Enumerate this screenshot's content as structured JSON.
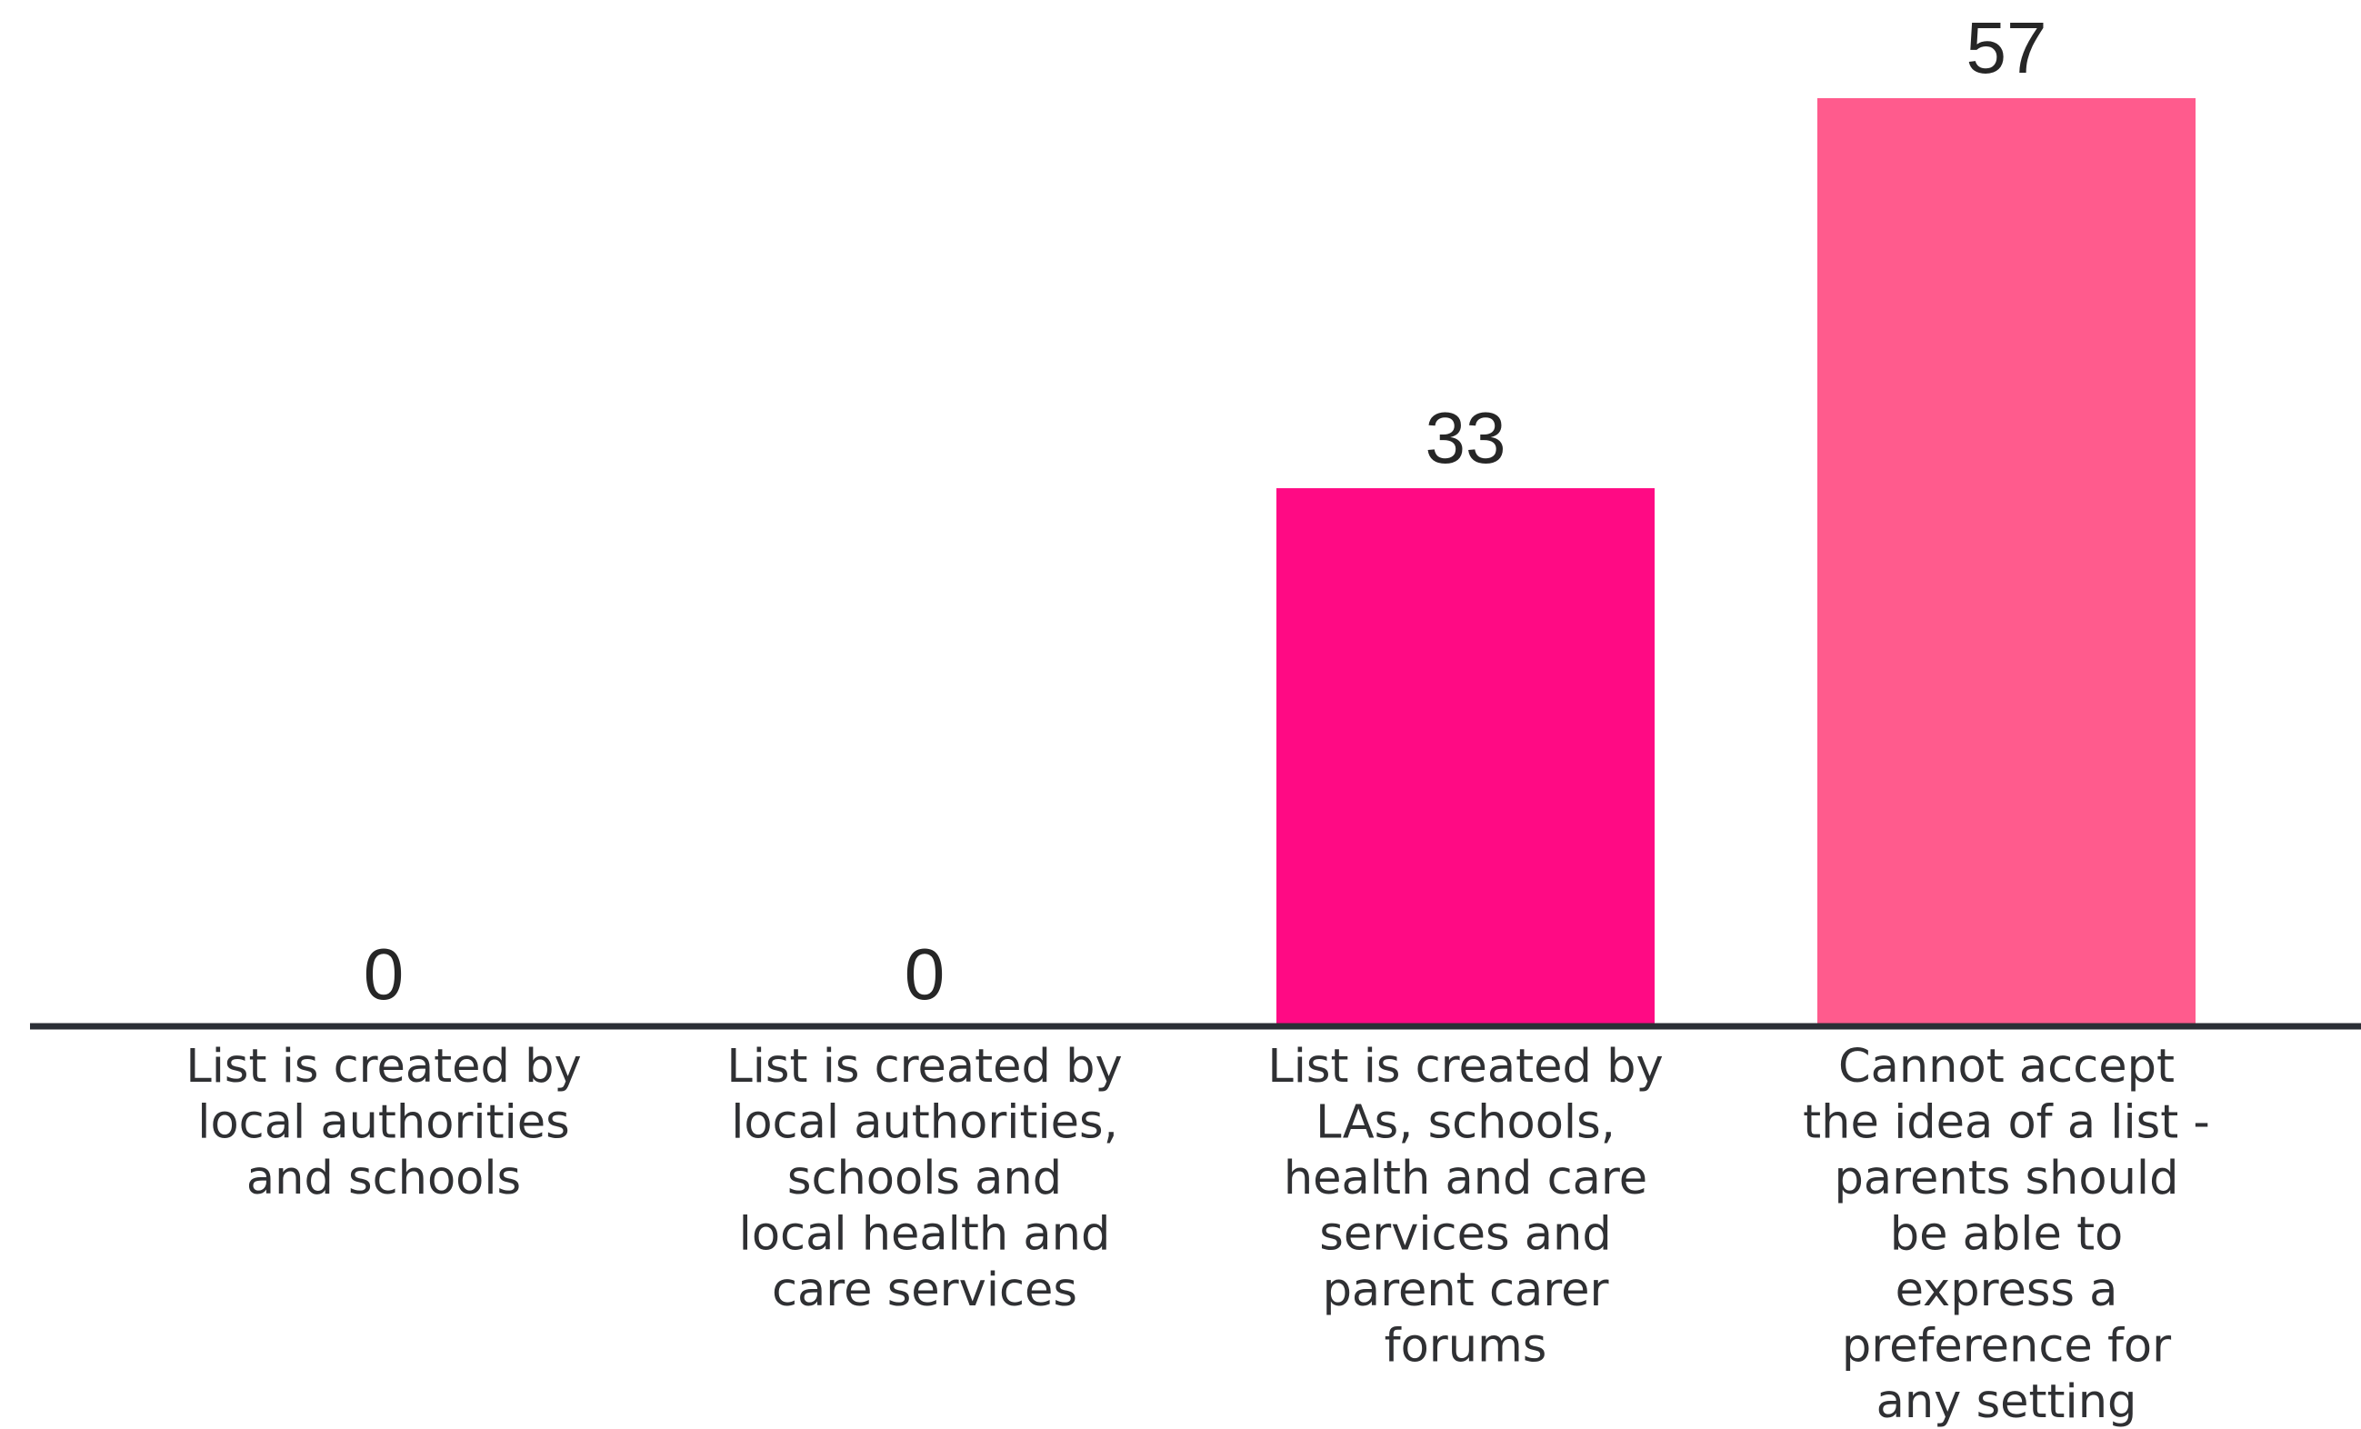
{
  "chart_data": {
    "type": "bar",
    "title": "",
    "xlabel": "",
    "ylabel": "",
    "ylim": [
      0,
      57
    ],
    "grid": false,
    "legend": "none",
    "categories": [
      [
        "List is created by",
        "local authorities",
        "and schools"
      ],
      [
        "List is created by",
        "local authorities,",
        "schools and",
        "local health and",
        "care services"
      ],
      [
        "List is created by",
        "LAs, schools,",
        "health and care",
        "services and",
        "parent carer",
        "forums"
      ],
      [
        "Cannot accept",
        "the idea of a list -",
        "parents should",
        "be able to",
        "express a",
        "preference for",
        "any setting"
      ]
    ],
    "values": [
      0,
      0,
      33,
      57
    ],
    "value_labels": [
      "0",
      "0",
      "33",
      "57"
    ],
    "colors": [
      "#ff0a84",
      "#ff0a84",
      "#ff0a84",
      "#ff5b8d"
    ],
    "axis_color": "#2b2f36"
  }
}
